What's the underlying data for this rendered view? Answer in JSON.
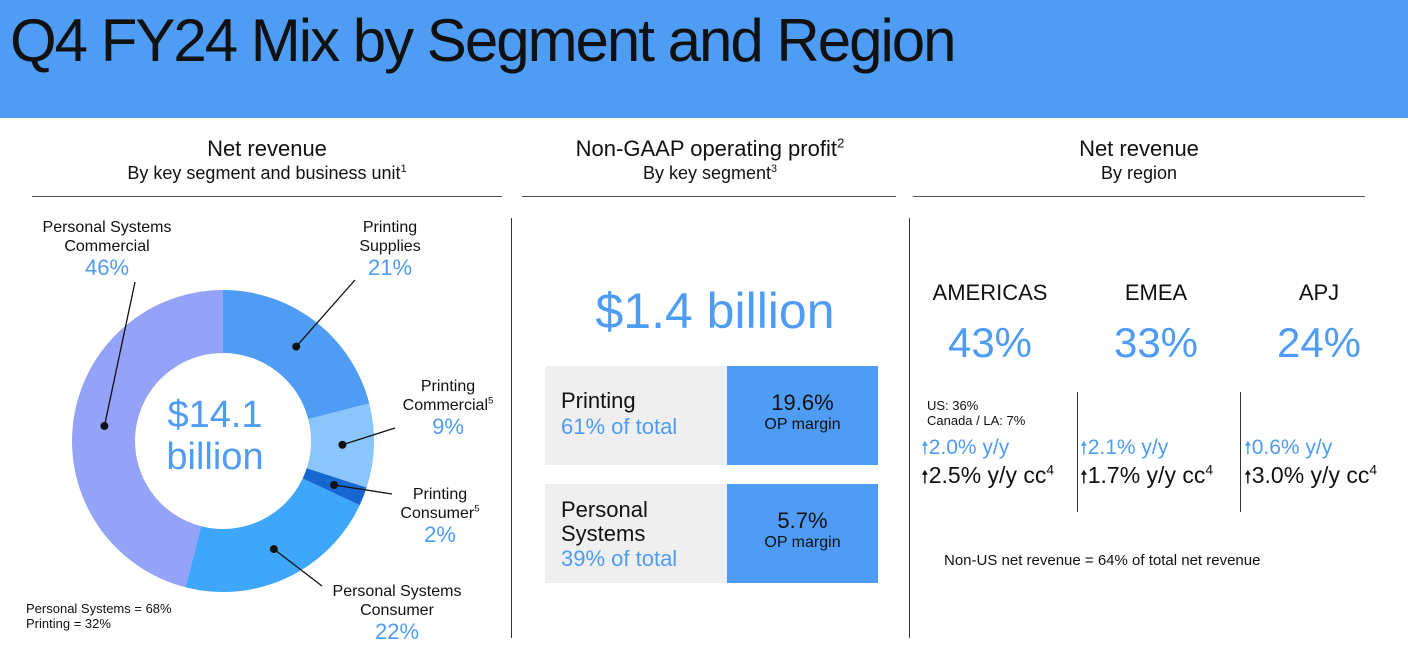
{
  "title": "Q4 FY24 Mix by Segment and Region",
  "colors": {
    "header": "#4f9cf5",
    "accent": "#4f9cf5"
  },
  "revenue_panel": {
    "heading": "Net revenue",
    "subheading": "By key segment and business unit",
    "subheading_note": "1",
    "center_value": "$14.1",
    "center_unit": "billion",
    "labels": [
      {
        "line1": "Personal Systems",
        "line2": "Commercial",
        "sup": "",
        "pct": "46%"
      },
      {
        "line1": "Printing",
        "line2": "Supplies",
        "sup": "",
        "pct": "21%"
      },
      {
        "line1": "Printing",
        "line2": "Commercial",
        "sup": "5",
        "pct": "9%"
      },
      {
        "line1": "Printing",
        "line2": "Consumer",
        "sup": "5",
        "pct": "2%"
      },
      {
        "line1": "Personal Systems",
        "line2": "Consumer",
        "sup": "",
        "pct": "22%"
      }
    ],
    "notes": [
      "Personal Systems = 68%",
      "Printing = 32%"
    ]
  },
  "op_panel": {
    "heading": "Non-GAAP operating profit",
    "heading_note": "2",
    "subheading": "By key segment",
    "subheading_note": "3",
    "total": "$1.4 billion",
    "segments": [
      {
        "name": "Printing",
        "name2": "",
        "share": "61% of total",
        "margin": "19.6%",
        "margin_label": "OP margin"
      },
      {
        "name": "Personal",
        "name2": "Systems",
        "share": "39% of total",
        "margin": "5.7%",
        "margin_label": "OP margin"
      }
    ]
  },
  "region_panel": {
    "heading": "Net revenue",
    "subheading": "By region",
    "regions": [
      {
        "name": "AMERICAS",
        "pct": "43%",
        "growth": "2.0% y/y",
        "growth_cc": "2.5% y/y cc",
        "note": "4"
      },
      {
        "name": "EMEA",
        "pct": "33%",
        "growth": "2.1% y/y",
        "growth_cc": "1.7% y/y cc",
        "note": "4"
      },
      {
        "name": "APJ",
        "pct": "24%",
        "growth": "0.6% y/y",
        "growth_cc": "3.0% y/y cc",
        "note": "4"
      }
    ],
    "americas_split": [
      "US: 36%",
      "Canada / LA: 7%"
    ],
    "footnote": "Non-US net revenue = 64% of total net revenue"
  },
  "chart_data": [
    {
      "type": "pie",
      "title": "Net revenue",
      "categories": [
        "Printing Supplies",
        "Printing Commercial",
        "Printing Consumer",
        "Personal Systems Consumer",
        "Personal Systems Commercial"
      ],
      "values": [
        21,
        9,
        2,
        22,
        46
      ],
      "colors": [
        "#4f9cf5",
        "#8ac6fb",
        "#1667d0",
        "#3ea7fb",
        "#94a3f7"
      ],
      "hole": "$14.1 billion"
    },
    {
      "type": "table",
      "title": "Non-GAAP operating profit",
      "total": "$1.4 billion",
      "rows": [
        {
          "segment": "Printing",
          "share_of_total": 61,
          "op_margin": 19.6
        },
        {
          "segment": "Personal Systems",
          "share_of_total": 39,
          "op_margin": 5.7
        }
      ]
    },
    {
      "type": "table",
      "title": "Net revenue",
      "rows": [
        {
          "region": "AMERICAS",
          "share": 43,
          "yy": 2.0,
          "yy_cc": 2.5
        },
        {
          "region": "EMEA",
          "share": 33,
          "yy": 2.1,
          "yy_cc": 1.7
        },
        {
          "region": "APJ",
          "share": 24,
          "yy": 0.6,
          "yy_cc": 3.0
        }
      ]
    }
  ]
}
